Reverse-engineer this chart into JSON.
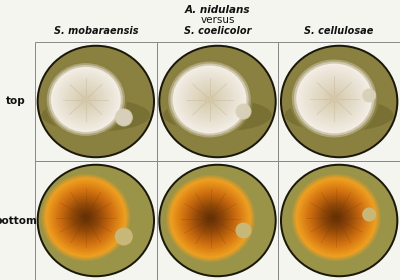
{
  "title_line1": "A. nidulans",
  "title_line2": "versus",
  "col_labels": [
    "S. mobaraensis",
    "S. coelicolor",
    "S. cellulosae"
  ],
  "row_labels": [
    "top",
    "bottom"
  ],
  "background_color": "#f5f5f0",
  "title_fontsize": 7.5,
  "col_label_fontsize": 7,
  "row_label_fontsize": 7.5,
  "fig_width": 4.0,
  "fig_height": 2.8,
  "dpi": 100,
  "agar_olive": "#8a8040",
  "agar_olive_dark": "#6a6228",
  "agar_olive_light": "#a09848",
  "fungus_white": "#f2ede5",
  "fungus_cream": "#e8dfc8",
  "fungus_center": "#d4c8a8",
  "bottom_agar_olive": "#9a9448",
  "bottom_orange_bright": "#f0a020",
  "bottom_orange_mid": "#d07010",
  "bottom_orange_dark": "#904808",
  "bottom_center_dark": "#5a2c05",
  "strep_top_color": "#d8d0b8",
  "strep_bottom_color": "#c8b878",
  "grid_color": "#888888",
  "label_color": "#111111"
}
